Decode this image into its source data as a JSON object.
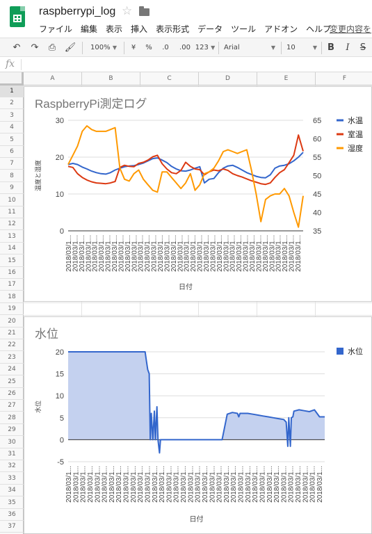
{
  "doc": {
    "title": "raspberrypi_log"
  },
  "menu": [
    "ファイル",
    "編集",
    "表示",
    "挿入",
    "表示形式",
    "データ",
    "ツール",
    "アドオン",
    "ヘルプ"
  ],
  "save_status": "変更内容を",
  "toolbar": {
    "zoom": "100%",
    "currency": "¥",
    "percent": "%",
    "dec_less": ".0",
    "dec_more": ".00",
    "more_formats": "123",
    "font": "Arial",
    "font_size": "10",
    "bold": "B",
    "italic": "I",
    "strike": "S"
  },
  "formula_bar": {
    "fx_label": "fx"
  },
  "columns": [
    "A",
    "B",
    "C",
    "D",
    "E",
    "F"
  ],
  "rows": [
    "1",
    "2",
    "3",
    "4",
    "5",
    "6",
    "7",
    "8",
    "9",
    "10",
    "11",
    "12",
    "13",
    "14",
    "15",
    "16",
    "17",
    "18",
    "19",
    "20",
    "21",
    "22",
    "23",
    "24",
    "25",
    "26",
    "27",
    "28",
    "29",
    "30",
    "31",
    "32",
    "33",
    "34",
    "35",
    "36",
    "37"
  ],
  "chart_data": [
    {
      "type": "line",
      "title": "RaspberryPi測定ログ",
      "xlabel": "日付",
      "ylabel": "温度と湿度",
      "ylim": [
        0,
        30
      ],
      "yticks": [
        "0",
        "10",
        "20",
        "30"
      ],
      "y2lim": [
        35,
        65
      ],
      "y2ticks": [
        "35",
        "40",
        "45",
        "50",
        "55",
        "60",
        "65"
      ],
      "x_tick_label": "2018/03/1...",
      "x_tick_count": 36,
      "legend_position": "right",
      "x": [
        0,
        2,
        4,
        6,
        8,
        10,
        12,
        14,
        16,
        18,
        20,
        22,
        24,
        26,
        28,
        30,
        32,
        34,
        36,
        38,
        40,
        42,
        44,
        46,
        48,
        50,
        52,
        54,
        56,
        58,
        60,
        62,
        64,
        66,
        68,
        70,
        72,
        74,
        76,
        78,
        80,
        82,
        84,
        86,
        88,
        90,
        92,
        94,
        96,
        98,
        100
      ],
      "series": [
        {
          "name": "水温",
          "color": "#3366cc",
          "axis": "left",
          "values": [
            18,
            18.3,
            18,
            17.3,
            16.8,
            16.2,
            15.8,
            15.5,
            15.4,
            15.8,
            16.5,
            17,
            17.4,
            17.6,
            17.7,
            18,
            18.4,
            19,
            19.6,
            19.8,
            19.2,
            18.5,
            17.5,
            16.8,
            16.3,
            16.2,
            16.5,
            17,
            17.4,
            13,
            14,
            14.2,
            15.8,
            17,
            17.6,
            17.8,
            17.2,
            16.5,
            15.8,
            15.3,
            14.8,
            14.5,
            14.4,
            15.2,
            17,
            17.6,
            17.8,
            18.2,
            19,
            20,
            21.3
          ]
        },
        {
          "name": "室温",
          "color": "#dc3912",
          "axis": "left",
          "values": [
            17.5,
            17.2,
            15.5,
            14.5,
            13.8,
            13.3,
            13,
            12.9,
            12.8,
            13,
            13.4,
            17.2,
            17.8,
            17.5,
            17.4,
            18.3,
            18.6,
            19.2,
            20.1,
            20.5,
            18.2,
            16.8,
            15.8,
            15.5,
            16.4,
            18.6,
            17.5,
            16.8,
            16.6,
            15.2,
            16,
            16.5,
            16.3,
            16.8,
            16.4,
            15.5,
            15,
            14.6,
            14.1,
            13.6,
            13.2,
            12.8,
            12.6,
            13,
            14.5,
            15.8,
            16.6,
            18.5,
            20.5,
            26,
            21.6
          ]
        },
        {
          "name": "湿度",
          "color": "#ff9900",
          "axis": "right",
          "values": [
            53,
            55.5,
            58,
            62,
            63.5,
            62.5,
            62,
            62,
            62,
            62.5,
            63,
            52,
            49,
            48.5,
            50.5,
            51.5,
            49,
            47.5,
            46,
            45.5,
            51,
            51,
            49.5,
            48,
            46.5,
            48,
            50.5,
            46,
            47.5,
            50.5,
            51,
            52,
            54,
            56.5,
            57,
            56.5,
            56,
            56.5,
            57,
            51.5,
            45,
            37.5,
            43.5,
            44.5,
            45,
            45,
            46.5,
            44.5,
            40,
            36,
            44.5
          ]
        }
      ]
    },
    {
      "type": "area",
      "title": "水位",
      "xlabel": "日付",
      "ylabel": "水位",
      "ylim": [
        -5,
        20
      ],
      "yticks": [
        "-5",
        "0",
        "5",
        "10",
        "15",
        "20"
      ],
      "x_tick_label": "2018/03/1...",
      "x_tick_count": 36,
      "legend_position": "right",
      "x": [
        0,
        6,
        12,
        18,
        24,
        28,
        30,
        30.5,
        31,
        31.6,
        32,
        32.4,
        33,
        33.6,
        34,
        34.6,
        35,
        35.6,
        36,
        36.6,
        37,
        40,
        44,
        48,
        52,
        56,
        60,
        62,
        64,
        66,
        66.5,
        67,
        70,
        72,
        74,
        76,
        78,
        80,
        82,
        84,
        85,
        85.6,
        86,
        86.6,
        87,
        87.6,
        88,
        90,
        92,
        94,
        96,
        98,
        100,
        100
      ],
      "series": [
        {
          "name": "水位",
          "color": "#3366cc",
          "fill": "#c4d1ef",
          "values": [
            20,
            20,
            20,
            20,
            20,
            20,
            20,
            18,
            16,
            15,
            0,
            6,
            0,
            6.5,
            0,
            7.5,
            0,
            -3,
            0,
            0,
            0,
            0,
            0,
            0,
            0,
            0,
            0,
            5.8,
            6.2,
            6,
            5.2,
            6,
            6,
            5.8,
            5.6,
            5.4,
            5.2,
            5,
            4.8,
            4.6,
            4,
            -1.5,
            5,
            -1.5,
            5,
            5.2,
            6.5,
            6.8,
            6.6,
            6.4,
            6.8,
            5.2,
            5.2,
            5.2
          ]
        }
      ]
    }
  ]
}
